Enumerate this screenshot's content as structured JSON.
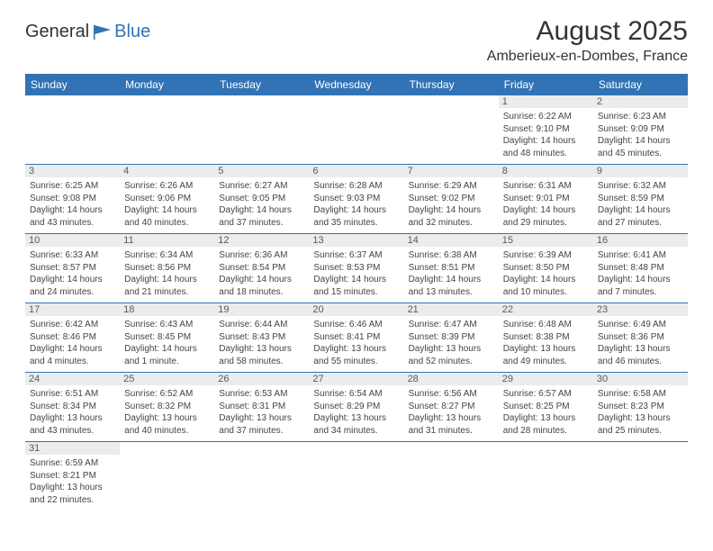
{
  "logo": {
    "general": "General",
    "blue": "Blue"
  },
  "title": "August 2025",
  "location": "Amberieux-en-Dombes, France",
  "colors": {
    "header_bg": "#3173b4",
    "header_text": "#ffffff",
    "daynum_bg": "#ececec",
    "row_divider": "#3173b4"
  },
  "day_headers": [
    "Sunday",
    "Monday",
    "Tuesday",
    "Wednesday",
    "Thursday",
    "Friday",
    "Saturday"
  ],
  "weeks": [
    [
      null,
      null,
      null,
      null,
      null,
      {
        "num": "1",
        "sunrise": "Sunrise: 6:22 AM",
        "sunset": "Sunset: 9:10 PM",
        "dl1": "Daylight: 14 hours",
        "dl2": "and 48 minutes."
      },
      {
        "num": "2",
        "sunrise": "Sunrise: 6:23 AM",
        "sunset": "Sunset: 9:09 PM",
        "dl1": "Daylight: 14 hours",
        "dl2": "and 45 minutes."
      }
    ],
    [
      {
        "num": "3",
        "sunrise": "Sunrise: 6:25 AM",
        "sunset": "Sunset: 9:08 PM",
        "dl1": "Daylight: 14 hours",
        "dl2": "and 43 minutes."
      },
      {
        "num": "4",
        "sunrise": "Sunrise: 6:26 AM",
        "sunset": "Sunset: 9:06 PM",
        "dl1": "Daylight: 14 hours",
        "dl2": "and 40 minutes."
      },
      {
        "num": "5",
        "sunrise": "Sunrise: 6:27 AM",
        "sunset": "Sunset: 9:05 PM",
        "dl1": "Daylight: 14 hours",
        "dl2": "and 37 minutes."
      },
      {
        "num": "6",
        "sunrise": "Sunrise: 6:28 AM",
        "sunset": "Sunset: 9:03 PM",
        "dl1": "Daylight: 14 hours",
        "dl2": "and 35 minutes."
      },
      {
        "num": "7",
        "sunrise": "Sunrise: 6:29 AM",
        "sunset": "Sunset: 9:02 PM",
        "dl1": "Daylight: 14 hours",
        "dl2": "and 32 minutes."
      },
      {
        "num": "8",
        "sunrise": "Sunrise: 6:31 AM",
        "sunset": "Sunset: 9:01 PM",
        "dl1": "Daylight: 14 hours",
        "dl2": "and 29 minutes."
      },
      {
        "num": "9",
        "sunrise": "Sunrise: 6:32 AM",
        "sunset": "Sunset: 8:59 PM",
        "dl1": "Daylight: 14 hours",
        "dl2": "and 27 minutes."
      }
    ],
    [
      {
        "num": "10",
        "sunrise": "Sunrise: 6:33 AM",
        "sunset": "Sunset: 8:57 PM",
        "dl1": "Daylight: 14 hours",
        "dl2": "and 24 minutes."
      },
      {
        "num": "11",
        "sunrise": "Sunrise: 6:34 AM",
        "sunset": "Sunset: 8:56 PM",
        "dl1": "Daylight: 14 hours",
        "dl2": "and 21 minutes."
      },
      {
        "num": "12",
        "sunrise": "Sunrise: 6:36 AM",
        "sunset": "Sunset: 8:54 PM",
        "dl1": "Daylight: 14 hours",
        "dl2": "and 18 minutes."
      },
      {
        "num": "13",
        "sunrise": "Sunrise: 6:37 AM",
        "sunset": "Sunset: 8:53 PM",
        "dl1": "Daylight: 14 hours",
        "dl2": "and 15 minutes."
      },
      {
        "num": "14",
        "sunrise": "Sunrise: 6:38 AM",
        "sunset": "Sunset: 8:51 PM",
        "dl1": "Daylight: 14 hours",
        "dl2": "and 13 minutes."
      },
      {
        "num": "15",
        "sunrise": "Sunrise: 6:39 AM",
        "sunset": "Sunset: 8:50 PM",
        "dl1": "Daylight: 14 hours",
        "dl2": "and 10 minutes."
      },
      {
        "num": "16",
        "sunrise": "Sunrise: 6:41 AM",
        "sunset": "Sunset: 8:48 PM",
        "dl1": "Daylight: 14 hours",
        "dl2": "and 7 minutes."
      }
    ],
    [
      {
        "num": "17",
        "sunrise": "Sunrise: 6:42 AM",
        "sunset": "Sunset: 8:46 PM",
        "dl1": "Daylight: 14 hours",
        "dl2": "and 4 minutes."
      },
      {
        "num": "18",
        "sunrise": "Sunrise: 6:43 AM",
        "sunset": "Sunset: 8:45 PM",
        "dl1": "Daylight: 14 hours",
        "dl2": "and 1 minute."
      },
      {
        "num": "19",
        "sunrise": "Sunrise: 6:44 AM",
        "sunset": "Sunset: 8:43 PM",
        "dl1": "Daylight: 13 hours",
        "dl2": "and 58 minutes."
      },
      {
        "num": "20",
        "sunrise": "Sunrise: 6:46 AM",
        "sunset": "Sunset: 8:41 PM",
        "dl1": "Daylight: 13 hours",
        "dl2": "and 55 minutes."
      },
      {
        "num": "21",
        "sunrise": "Sunrise: 6:47 AM",
        "sunset": "Sunset: 8:39 PM",
        "dl1": "Daylight: 13 hours",
        "dl2": "and 52 minutes."
      },
      {
        "num": "22",
        "sunrise": "Sunrise: 6:48 AM",
        "sunset": "Sunset: 8:38 PM",
        "dl1": "Daylight: 13 hours",
        "dl2": "and 49 minutes."
      },
      {
        "num": "23",
        "sunrise": "Sunrise: 6:49 AM",
        "sunset": "Sunset: 8:36 PM",
        "dl1": "Daylight: 13 hours",
        "dl2": "and 46 minutes."
      }
    ],
    [
      {
        "num": "24",
        "sunrise": "Sunrise: 6:51 AM",
        "sunset": "Sunset: 8:34 PM",
        "dl1": "Daylight: 13 hours",
        "dl2": "and 43 minutes."
      },
      {
        "num": "25",
        "sunrise": "Sunrise: 6:52 AM",
        "sunset": "Sunset: 8:32 PM",
        "dl1": "Daylight: 13 hours",
        "dl2": "and 40 minutes."
      },
      {
        "num": "26",
        "sunrise": "Sunrise: 6:53 AM",
        "sunset": "Sunset: 8:31 PM",
        "dl1": "Daylight: 13 hours",
        "dl2": "and 37 minutes."
      },
      {
        "num": "27",
        "sunrise": "Sunrise: 6:54 AM",
        "sunset": "Sunset: 8:29 PM",
        "dl1": "Daylight: 13 hours",
        "dl2": "and 34 minutes."
      },
      {
        "num": "28",
        "sunrise": "Sunrise: 6:56 AM",
        "sunset": "Sunset: 8:27 PM",
        "dl1": "Daylight: 13 hours",
        "dl2": "and 31 minutes."
      },
      {
        "num": "29",
        "sunrise": "Sunrise: 6:57 AM",
        "sunset": "Sunset: 8:25 PM",
        "dl1": "Daylight: 13 hours",
        "dl2": "and 28 minutes."
      },
      {
        "num": "30",
        "sunrise": "Sunrise: 6:58 AM",
        "sunset": "Sunset: 8:23 PM",
        "dl1": "Daylight: 13 hours",
        "dl2": "and 25 minutes."
      }
    ],
    [
      {
        "num": "31",
        "sunrise": "Sunrise: 6:59 AM",
        "sunset": "Sunset: 8:21 PM",
        "dl1": "Daylight: 13 hours",
        "dl2": "and 22 minutes."
      },
      null,
      null,
      null,
      null,
      null,
      null
    ]
  ]
}
